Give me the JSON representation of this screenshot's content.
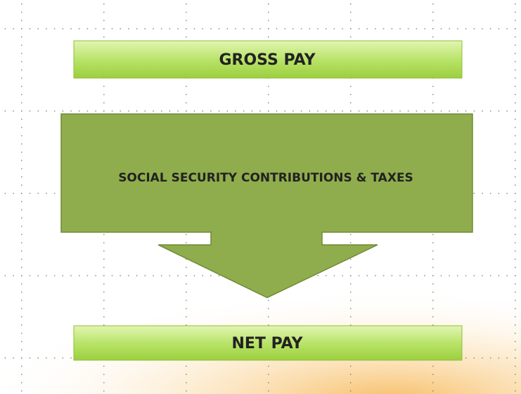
{
  "nodes": [
    {
      "label": "GROSS PAY"
    },
    {
      "label": "SOCIAL SECURITY CONTRIBUTIONS & TAXES"
    },
    {
      "label": "NET PAY"
    }
  ]
}
